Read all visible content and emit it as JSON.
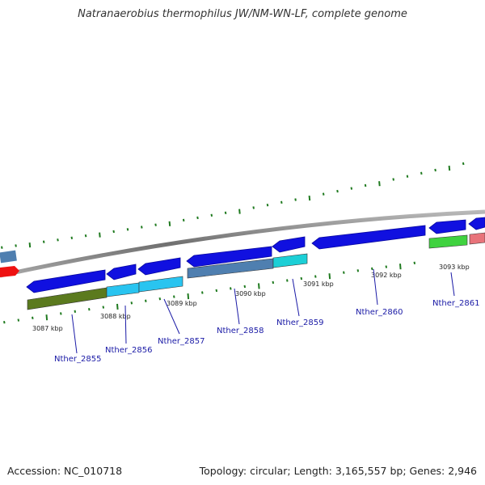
{
  "title": "Natranaerobius thermophilus JW/NM-WN-LF, complete genome",
  "footer": {
    "accession": "Accession: NC_010718",
    "summary": "Topology: circular; Length: 3,165,557 bp; Genes: 2,946"
  },
  "colors": {
    "backbone": "#8a8a8a",
    "cds_strand": "#1010e0",
    "tick": "#1f7a1f",
    "label": "#1a1aa6"
  },
  "scale_labels": [
    "3087 kbp",
    "3088 kbp",
    "3089 kbp",
    "3090 kbp",
    "3091 kbp",
    "3092 kbp",
    "3093 kbp"
  ],
  "genes": [
    {
      "id": "Nther_2855",
      "track": "reverse",
      "color": "#1010e0"
    },
    {
      "id": "Nther_2856",
      "track": "reverse",
      "color": "#1010e0"
    },
    {
      "id": "Nther_2857",
      "track": "reverse",
      "color": "#1010e0"
    },
    {
      "id": "Nther_2858",
      "track": "reverse",
      "color": "#1010e0"
    },
    {
      "id": "Nther_2859",
      "track": "reverse",
      "color": "#1010e0"
    },
    {
      "id": "Nther_2860",
      "track": "reverse",
      "color": "#1010e0"
    },
    {
      "id": "Nther_2861",
      "track": "reverse",
      "color": "#1010e0"
    }
  ],
  "cog_features": [
    {
      "color": "#5b7a1e"
    },
    {
      "color": "#29c4f0"
    },
    {
      "color": "#29c4f0"
    },
    {
      "color": "#4f7fb0"
    },
    {
      "color": "#1ccfd6"
    },
    {
      "color": "#3fd23f"
    },
    {
      "color": "#e8737a"
    }
  ]
}
